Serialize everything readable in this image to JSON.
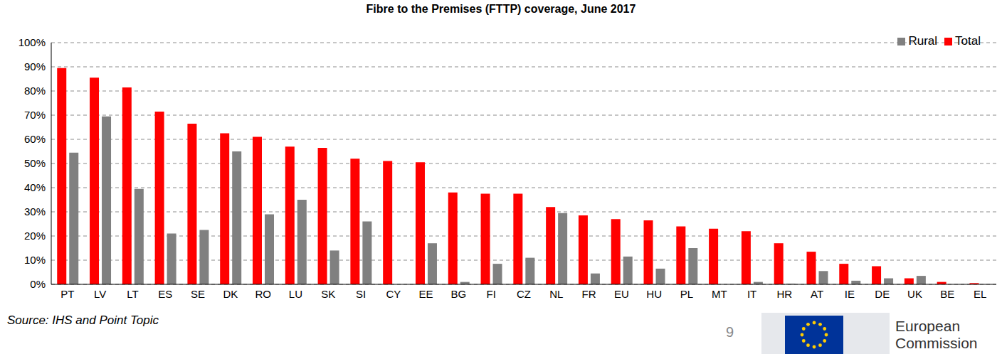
{
  "chart_data": {
    "type": "bar",
    "title": "Fibre to the Premises (FTTP) coverage, June 2017",
    "categories": [
      "PT",
      "LV",
      "LT",
      "ES",
      "SE",
      "DK",
      "RO",
      "LU",
      "SK",
      "SI",
      "CY",
      "EE",
      "BG",
      "FI",
      "CZ",
      "NL",
      "FR",
      "EU",
      "HU",
      "PL",
      "MT",
      "IT",
      "HR",
      "AT",
      "IE",
      "DE",
      "UK",
      "BE",
      "EL"
    ],
    "series": [
      {
        "name": "Total",
        "color": "#ff0000",
        "values": [
          89.5,
          85.5,
          81.5,
          71.5,
          66.5,
          62.5,
          61,
          57,
          56.5,
          52,
          51,
          50.5,
          38,
          37.5,
          37.5,
          32,
          28.5,
          27,
          26.5,
          24,
          23,
          22,
          17,
          13.5,
          8.5,
          7.5,
          2.5,
          1,
          0.5
        ]
      },
      {
        "name": "Rural",
        "color": "#808080",
        "values": [
          54.5,
          69.5,
          39.5,
          21,
          22.5,
          55,
          29,
          35,
          14,
          26,
          0,
          17,
          1,
          8.5,
          11,
          29.5,
          4.5,
          11.5,
          6.5,
          15,
          0,
          1,
          0.3,
          5.5,
          1.5,
          2.5,
          3.5,
          0,
          0
        ]
      }
    ],
    "ylim": [
      0,
      100
    ],
    "yticks": [
      {
        "value": 0,
        "label": "0%"
      },
      {
        "value": 10,
        "label": "10%"
      },
      {
        "value": 20,
        "label": "20%"
      },
      {
        "value": 30,
        "label": "30%"
      },
      {
        "value": 40,
        "label": "40%"
      },
      {
        "value": 50,
        "label": "50%"
      },
      {
        "value": 60,
        "label": "60%"
      },
      {
        "value": 70,
        "label": "70%"
      },
      {
        "value": 80,
        "label": "80%"
      },
      {
        "value": 90,
        "label": "90%"
      },
      {
        "value": 100,
        "label": "100%"
      }
    ],
    "grid": true,
    "legend": "top-right",
    "annotations": [
      "Source: IHS and Point Topic",
      "9",
      "European Commission"
    ]
  }
}
